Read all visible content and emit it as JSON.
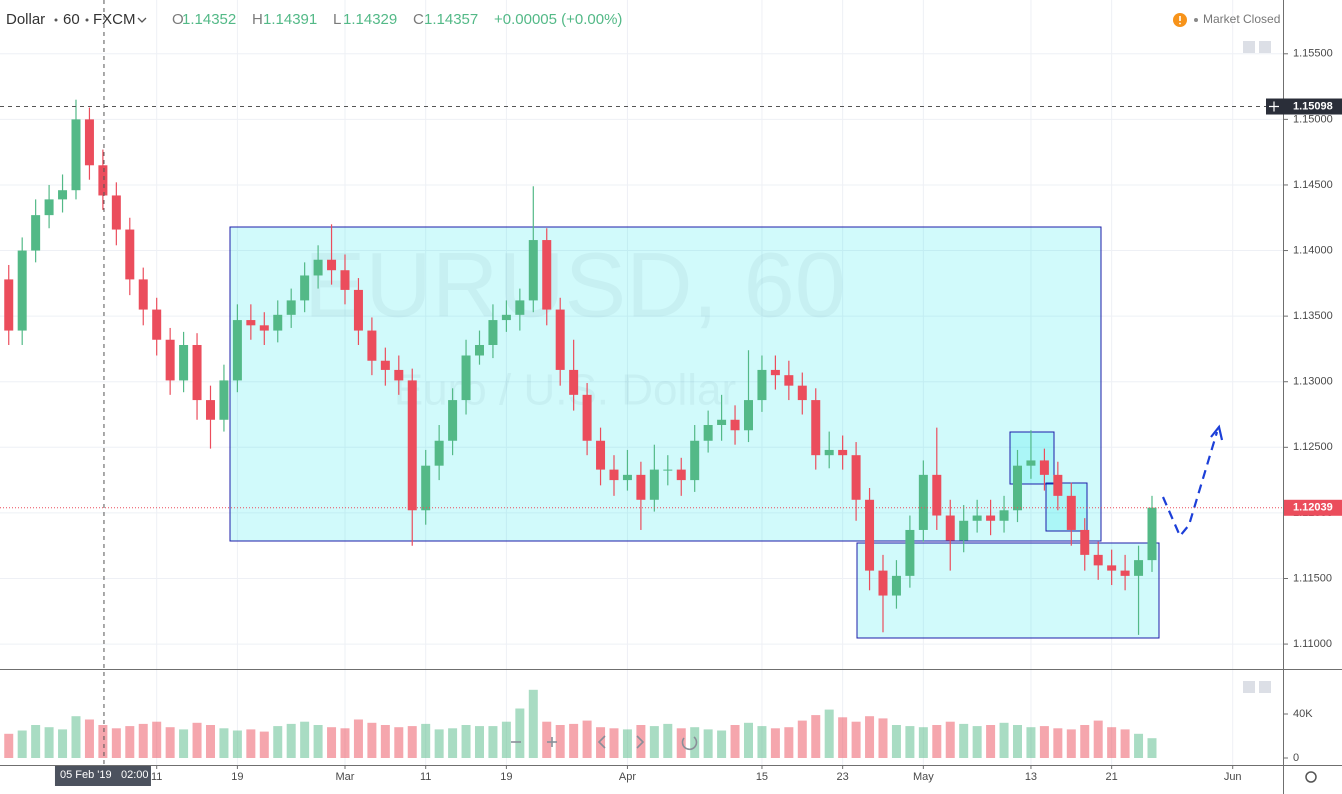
{
  "chart_data": {
    "type": "candlestick",
    "symbol": "Dollar",
    "interval": "60",
    "source": "FXCM",
    "legend": [
      {
        "label": "O",
        "value": 1.14352
      },
      {
        "label": "H",
        "value": 1.14391
      },
      {
        "label": "L",
        "value": 1.14329
      },
      {
        "label": "C",
        "value": 1.14357
      }
    ],
    "change": "+0.00005 (+0.00%)",
    "status": "Market Closed",
    "watermark": {
      "title": "EURUSD, 60",
      "subtitle": "Euro / U.S. Dollar"
    },
    "up_color": "#53b987",
    "down_color": "#eb4d5c",
    "grid": true,
    "x": [
      -5,
      -4,
      -3,
      -2,
      -1,
      0,
      1,
      2,
      3,
      4,
      5,
      6,
      7,
      8,
      9,
      10,
      11,
      12,
      13,
      14,
      15,
      16,
      17,
      18,
      19,
      20,
      21,
      22,
      23,
      24,
      25,
      26,
      27,
      28,
      29,
      30,
      31,
      32,
      33,
      34,
      35,
      36,
      37,
      38,
      39,
      40,
      41,
      42,
      43,
      44,
      45,
      46,
      47,
      48,
      49,
      50,
      51,
      52,
      53,
      54,
      55,
      56,
      57,
      58,
      59,
      60,
      61,
      62,
      63,
      64,
      65,
      66,
      67,
      68,
      69,
      70,
      71,
      72,
      73,
      74,
      75,
      76,
      77,
      78,
      79,
      80
    ],
    "open": [
      1.1378,
      1.1339,
      1.14,
      1.1427,
      1.1439,
      1.1446,
      1.15,
      1.1465,
      1.1442,
      1.1416,
      1.1378,
      1.1355,
      1.1332,
      1.1301,
      1.1328,
      1.1286,
      1.1271,
      1.1301,
      1.1347,
      1.1343,
      1.1339,
      1.1351,
      1.1362,
      1.1381,
      1.1393,
      1.1385,
      1.137,
      1.1339,
      1.1316,
      1.1309,
      1.1301,
      1.1202,
      1.1236,
      1.1255,
      1.1286,
      1.132,
      1.1328,
      1.1347,
      1.1351,
      1.1362,
      1.1408,
      1.1355,
      1.1309,
      1.129,
      1.1255,
      1.1233,
      1.1225,
      1.1229,
      1.121,
      1.1233,
      1.1233,
      1.1225,
      1.1255,
      1.1267,
      1.1271,
      1.1263,
      1.1286,
      1.1309,
      1.1305,
      1.1297,
      1.1286,
      1.1244,
      1.1248,
      1.1244,
      1.121,
      1.1156,
      1.1137,
      1.1152,
      1.1187,
      1.1229,
      1.1198,
      1.1179,
      1.1194,
      1.1198,
      1.1194,
      1.1202,
      1.1236,
      1.124,
      1.1229,
      1.1213,
      1.1187,
      1.1168,
      1.116,
      1.1156,
      1.1152,
      1.1164
    ],
    "high": [
      1.1389,
      1.141,
      1.1439,
      1.145,
      1.1458,
      1.1515,
      1.1509,
      1.1477,
      1.1452,
      1.1425,
      1.1387,
      1.1364,
      1.1341,
      1.1338,
      1.1337,
      1.1297,
      1.1313,
      1.1359,
      1.1359,
      1.1353,
      1.1362,
      1.1371,
      1.1391,
      1.1404,
      1.142,
      1.1397,
      1.1379,
      1.1349,
      1.1326,
      1.132,
      1.131,
      1.1248,
      1.1267,
      1.1295,
      1.1332,
      1.1339,
      1.1359,
      1.1362,
      1.1371,
      1.1449,
      1.1417,
      1.1364,
      1.1332,
      1.1299,
      1.1265,
      1.1244,
      1.1248,
      1.1239,
      1.1252,
      1.1244,
      1.1242,
      1.1267,
      1.1278,
      1.129,
      1.1282,
      1.1324,
      1.132,
      1.132,
      1.1316,
      1.1307,
      1.1295,
      1.1262,
      1.1259,
      1.1254,
      1.1219,
      1.1168,
      1.1164,
      1.1198,
      1.124,
      1.1265,
      1.121,
      1.1206,
      1.121,
      1.121,
      1.1213,
      1.1248,
      1.1263,
      1.1249,
      1.1239,
      1.1223,
      1.1196,
      1.1178,
      1.1172,
      1.1168,
      1.1175,
      1.1213
    ],
    "low": [
      1.1328,
      1.1328,
      1.1391,
      1.1417,
      1.1429,
      1.1439,
      1.1454,
      1.1431,
      1.1404,
      1.1366,
      1.1343,
      1.132,
      1.129,
      1.1292,
      1.1271,
      1.1249,
      1.1262,
      1.1292,
      1.1332,
      1.1328,
      1.133,
      1.1341,
      1.1353,
      1.1371,
      1.1374,
      1.1359,
      1.1328,
      1.1305,
      1.1297,
      1.129,
      1.1175,
      1.1191,
      1.1225,
      1.1244,
      1.1275,
      1.1313,
      1.1318,
      1.1338,
      1.1339,
      1.1353,
      1.1343,
      1.1297,
      1.1278,
      1.1244,
      1.1221,
      1.1213,
      1.1217,
      1.1187,
      1.1201,
      1.1221,
      1.1213,
      1.1216,
      1.1246,
      1.1255,
      1.1252,
      1.1254,
      1.1277,
      1.1294,
      1.1286,
      1.1275,
      1.1233,
      1.1234,
      1.1233,
      1.1194,
      1.1141,
      1.1109,
      1.1127,
      1.1143,
      1.1178,
      1.1187,
      1.1156,
      1.117,
      1.1185,
      1.1183,
      1.1185,
      1.1193,
      1.1226,
      1.1217,
      1.1202,
      1.1175,
      1.1156,
      1.1149,
      1.1145,
      1.1141,
      1.1107,
      1.1155
    ],
    "close": [
      1.1339,
      1.14,
      1.1427,
      1.1439,
      1.1446,
      1.15,
      1.1465,
      1.1442,
      1.1416,
      1.1378,
      1.1355,
      1.1332,
      1.1301,
      1.1328,
      1.1286,
      1.1271,
      1.1301,
      1.1347,
      1.1343,
      1.1339,
      1.1351,
      1.1362,
      1.1381,
      1.1393,
      1.1385,
      1.137,
      1.1339,
      1.1316,
      1.1309,
      1.1301,
      1.1202,
      1.1236,
      1.1255,
      1.1286,
      1.132,
      1.1328,
      1.1347,
      1.1351,
      1.1362,
      1.1408,
      1.1355,
      1.1309,
      1.129,
      1.1255,
      1.1233,
      1.1225,
      1.1229,
      1.121,
      1.1233,
      1.1233,
      1.1225,
      1.1255,
      1.1267,
      1.1271,
      1.1263,
      1.1286,
      1.1309,
      1.1305,
      1.1297,
      1.1286,
      1.1244,
      1.1248,
      1.1244,
      1.121,
      1.1156,
      1.1137,
      1.1152,
      1.1187,
      1.1229,
      1.1198,
      1.1179,
      1.1194,
      1.1198,
      1.1194,
      1.1202,
      1.1236,
      1.124,
      1.1229,
      1.1213,
      1.1187,
      1.1168,
      1.116,
      1.1156,
      1.1152,
      1.1164,
      1.1204
    ],
    "volume": [
      22000,
      25000,
      30000,
      28000,
      26000,
      38000,
      35000,
      30000,
      27000,
      29000,
      31000,
      33000,
      28000,
      26000,
      32000,
      30000,
      27000,
      25000,
      26000,
      24000,
      29000,
      31000,
      33000,
      30000,
      28000,
      27000,
      35000,
      32000,
      30000,
      28000,
      29000,
      31000,
      26000,
      27000,
      30000,
      29000,
      29000,
      33000,
      45000,
      62000,
      33000,
      30000,
      31000,
      34000,
      28000,
      27000,
      26000,
      30000,
      29000,
      31000,
      27000,
      28000,
      26000,
      25000,
      30000,
      32000,
      29000,
      27000,
      28000,
      34000,
      39000,
      44000,
      37000,
      33000,
      38000,
      36000,
      30000,
      29000,
      28000,
      30000,
      33000,
      31000,
      29000,
      30000,
      32000,
      30000,
      28000,
      29000,
      27000,
      26000,
      30000,
      34000,
      28000,
      26000,
      22000,
      18000
    ],
    "xlim": [
      -5.65,
      89.74
    ],
    "xticks": [
      {
        "value": 6,
        "label": "11"
      },
      {
        "value": 12,
        "label": "19"
      },
      {
        "value": 20,
        "label": "Mar"
      },
      {
        "value": 26,
        "label": "11"
      },
      {
        "value": 32,
        "label": "19"
      },
      {
        "value": 41,
        "label": "Apr"
      },
      {
        "value": 51,
        "label": "15"
      },
      {
        "value": 57,
        "label": "23"
      },
      {
        "value": 63,
        "label": "May"
      },
      {
        "value": 71,
        "label": "13"
      },
      {
        "value": 77,
        "label": "21"
      },
      {
        "value": 86,
        "label": "Jun"
      }
    ],
    "ylim": [
      1.1081,
      1.1591
    ],
    "yticks": [
      {
        "value": 1.155,
        "label": "1.15500"
      },
      {
        "value": 1.15,
        "label": "1.15000"
      },
      {
        "value": 1.145,
        "label": "1.14500"
      },
      {
        "value": 1.14,
        "label": "1.14000"
      },
      {
        "value": 1.135,
        "label": "1.13500"
      },
      {
        "value": 1.13,
        "label": "1.13000"
      },
      {
        "value": 1.125,
        "label": "1.12500"
      },
      {
        "value": 1.12,
        "label": "1.12000"
      },
      {
        "value": 1.115,
        "label": "1.11500"
      },
      {
        "value": 1.11,
        "label": "1.11000"
      }
    ],
    "volume_ylim": [
      0,
      80000
    ],
    "volume_yticks": [
      {
        "value": 40000,
        "label": "40K"
      },
      0
    ],
    "last_price": 1.12039,
    "crosshair": {
      "x": 2.08,
      "price": 1.15098,
      "date_label": "05 Feb '19",
      "time_label": "02:00"
    }
  }
}
